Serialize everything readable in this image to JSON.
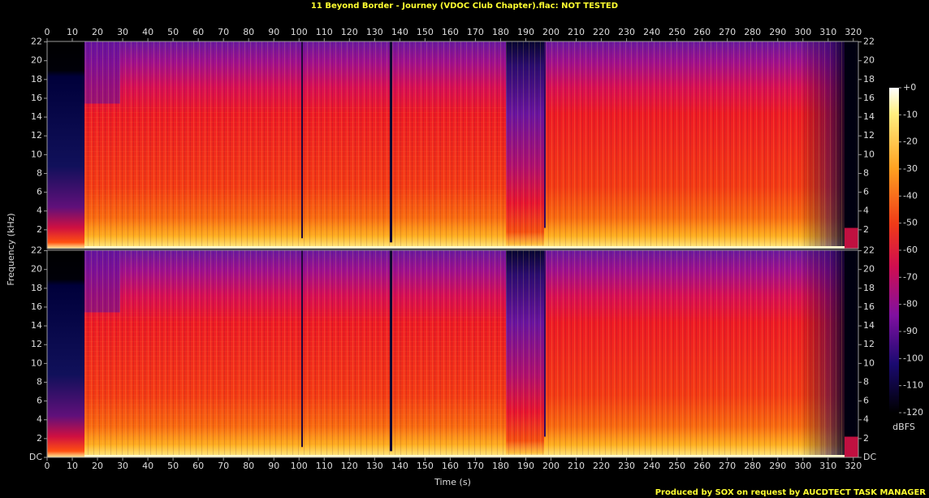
{
  "title": "11 Beyond Border - Journey (VDOC Club Chapter).flac: NOT TESTED",
  "footer": "Produced by SOX on request by AUCDTECT TASK MANAGER",
  "y_label": "Frequency (kHz)",
  "colorbar": {
    "label": "dBFS",
    "zlim": [
      -120,
      0
    ],
    "ticks": [
      {
        "value": 0,
        "label": "+0"
      },
      -10,
      -20,
      -30,
      -40,
      -50,
      -60,
      -70,
      -80,
      -90,
      -100,
      -110,
      -120
    ]
  },
  "chart_data": [
    {
      "type": "spectrogram",
      "xlim": [
        0,
        322
      ],
      "ylim": [
        0,
        22.05
      ],
      "xticks": [
        0,
        10,
        20,
        30,
        40,
        50,
        60,
        70,
        80,
        90,
        100,
        110,
        120,
        130,
        140,
        150,
        160,
        170,
        180,
        190,
        200,
        210,
        220,
        230,
        240,
        250,
        260,
        270,
        280,
        290,
        300,
        310,
        320
      ],
      "yticks": [
        2,
        4,
        6,
        8,
        10,
        12,
        14,
        16,
        18,
        20,
        22
      ]
    },
    {
      "type": "spectrogram",
      "x_label": "Time (s)",
      "xlim": [
        0,
        322
      ],
      "ylim": [
        0,
        22.05
      ],
      "xticks": [
        0,
        10,
        20,
        30,
        40,
        50,
        60,
        70,
        80,
        90,
        100,
        110,
        120,
        130,
        140,
        150,
        160,
        170,
        180,
        190,
        200,
        210,
        220,
        230,
        240,
        250,
        260,
        270,
        280,
        290,
        300,
        310,
        320
      ],
      "yticks": [
        {
          "value": 0,
          "label": "DC"
        },
        2,
        4,
        6,
        8,
        10,
        12,
        14,
        16,
        18,
        20,
        22
      ]
    }
  ]
}
